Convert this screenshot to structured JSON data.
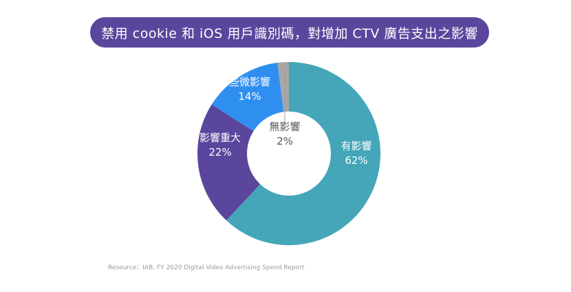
{
  "title": "禁用 cookie 和 iOS 用戶識別碼，對增加 CTV 廣告支出之影響",
  "source": "Resource：IAB, FY 2020 Digital Video Advertising Spend Report",
  "chart_data": {
    "type": "pie",
    "style": "donut",
    "title": "禁用 cookie 和 iOS 用戶識別碼，對增加 CTV 廣告支出之影響",
    "slices": [
      {
        "label": "有影響",
        "value": 62,
        "value_label": "62%",
        "color": "#44a6b8",
        "label_color": "#ffffff"
      },
      {
        "label": "影響重大",
        "value": 22,
        "value_label": "22%",
        "color": "#5b469d",
        "label_color": "#ffffff"
      },
      {
        "label": "些微影響",
        "value": 14,
        "value_label": "14%",
        "color": "#2f8ff0",
        "label_color": "#ffffff"
      },
      {
        "label": "無影響",
        "value": 2,
        "value_label": "2%",
        "color": "#a7a7a7",
        "label_color": "#555555"
      }
    ]
  }
}
